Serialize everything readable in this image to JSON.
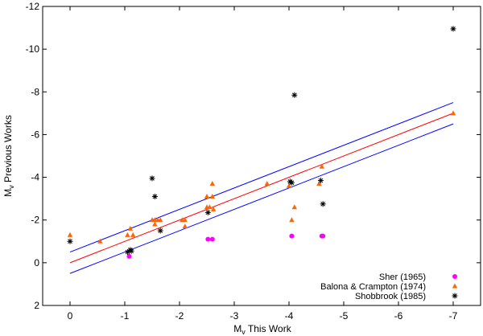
{
  "chart_data": {
    "type": "scatter",
    "title": "",
    "xlabel_main": "M",
    "xlabel_sub": "v",
    "xlabel_rest": " This Work",
    "ylabel_main": "M",
    "ylabel_sub": "v",
    "ylabel_rest": " Previous Works",
    "xlim": [
      0.5,
      -7.5
    ],
    "ylim": [
      2,
      -12
    ],
    "x_ticks": [
      0,
      -1,
      -2,
      -3,
      -4,
      -5,
      -6,
      -7
    ],
    "x_tick_labels": [
      "0",
      "-1",
      "-2",
      "-3",
      "-4",
      "-5",
      "-6",
      "-7"
    ],
    "y_ticks": [
      2,
      0,
      -2,
      -4,
      -6,
      -8,
      -10,
      -12
    ],
    "y_tick_labels": [
      "2",
      "0",
      "-2",
      "-4",
      "-6",
      "-8",
      "-10",
      "-12"
    ],
    "legend_position": "bottom-right",
    "series": [
      {
        "name": "Sher (1965)",
        "marker": "circle",
        "color": "#ff00ff",
        "points": [
          [
            -1.08,
            -0.3
          ],
          [
            -2.52,
            -1.1
          ],
          [
            -2.6,
            -1.1
          ],
          [
            -4.05,
            -1.25
          ],
          [
            -4.6,
            -1.25
          ],
          [
            -4.62,
            -1.25
          ]
        ]
      },
      {
        "name": "Balona & Crampton (1974)",
        "marker": "triangle",
        "color": "#ff6600",
        "points": [
          [
            0.0,
            -1.3
          ],
          [
            -0.55,
            -1.0
          ],
          [
            -1.05,
            -1.3
          ],
          [
            -1.1,
            -1.6
          ],
          [
            -1.15,
            -1.3
          ],
          [
            -1.5,
            -2.0
          ],
          [
            -1.55,
            -2.0
          ],
          [
            -1.6,
            -2.0
          ],
          [
            -1.55,
            -1.8
          ],
          [
            -1.65,
            -2.0
          ],
          [
            -2.05,
            -2.0
          ],
          [
            -2.1,
            -2.0
          ],
          [
            -2.1,
            -1.7
          ],
          [
            -2.5,
            -2.6
          ],
          [
            -2.5,
            -3.1
          ],
          [
            -2.6,
            -3.1
          ],
          [
            -2.6,
            -3.7
          ],
          [
            -2.55,
            -2.6
          ],
          [
            -2.62,
            -2.5
          ],
          [
            -3.6,
            -3.7
          ],
          [
            -4.0,
            -3.6
          ],
          [
            -4.05,
            -2.0
          ],
          [
            -4.1,
            -2.6
          ],
          [
            -4.55,
            -3.7
          ],
          [
            -4.6,
            -4.5
          ],
          [
            -7.0,
            -7.0
          ]
        ]
      },
      {
        "name": "Shobbrook (1985)",
        "marker": "asterisk",
        "color": "#000000",
        "points": [
          [
            0.0,
            -1.0
          ],
          [
            -1.05,
            -0.5
          ],
          [
            -1.1,
            -0.6
          ],
          [
            -1.12,
            -0.55
          ],
          [
            -1.5,
            -3.95
          ],
          [
            -1.55,
            -3.1
          ],
          [
            -1.65,
            -1.5
          ],
          [
            -2.52,
            -2.35
          ],
          [
            -4.02,
            -3.8
          ],
          [
            -4.05,
            -3.75
          ],
          [
            -4.1,
            -7.85
          ],
          [
            -4.58,
            -3.85
          ],
          [
            -4.62,
            -2.75
          ],
          [
            -7.0,
            -10.95
          ]
        ]
      }
    ],
    "lines": [
      {
        "name": "fit",
        "color": "#ff0000",
        "x": [
          0,
          -7
        ],
        "y": [
          0,
          -7
        ]
      },
      {
        "name": "upper",
        "color": "#0000ff",
        "x": [
          0,
          -7
        ],
        "y": [
          -0.5,
          -7.5
        ]
      },
      {
        "name": "lower",
        "color": "#0000ff",
        "x": [
          0,
          -7
        ],
        "y": [
          0.5,
          -6.5
        ]
      }
    ]
  }
}
